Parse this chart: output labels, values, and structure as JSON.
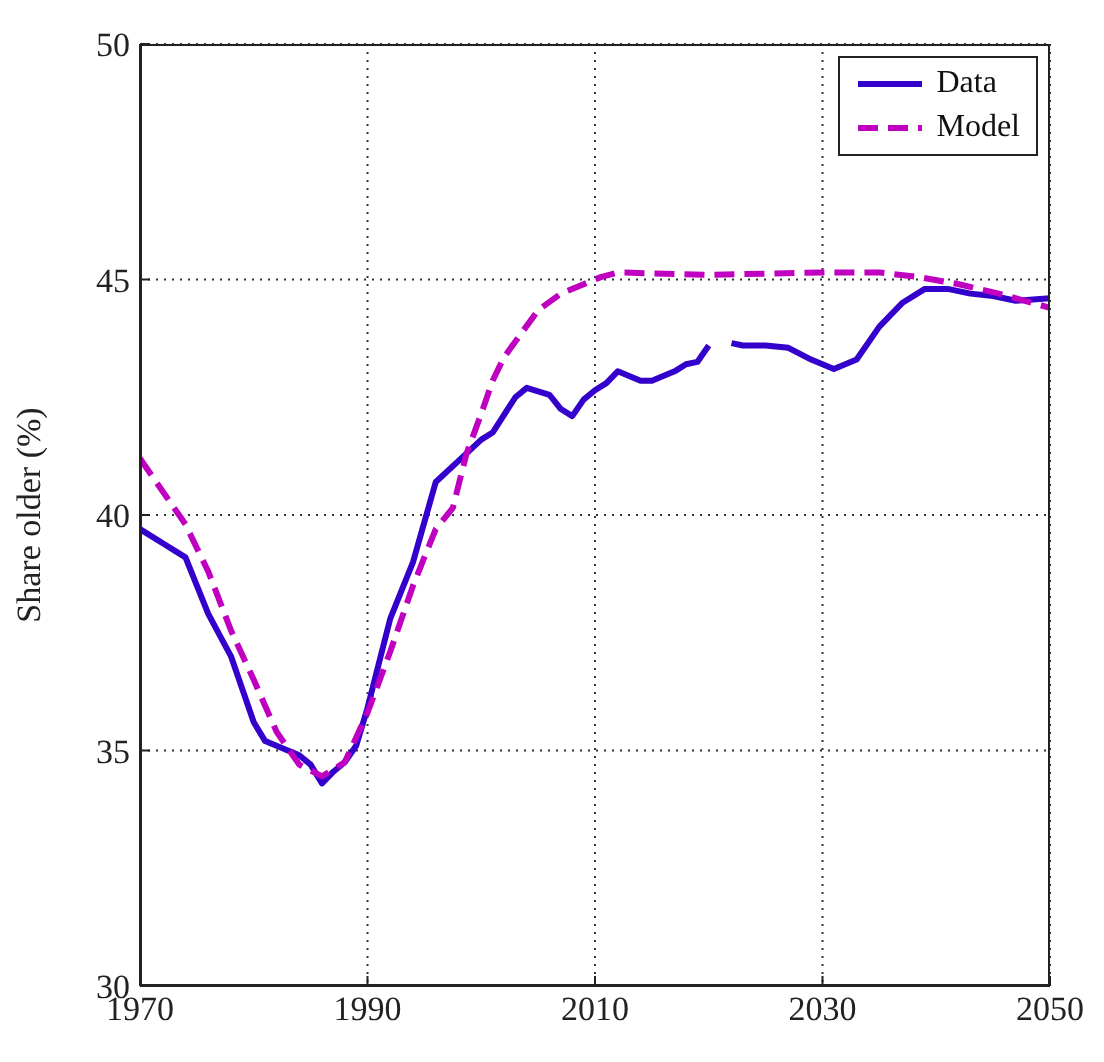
{
  "chart_data": {
    "type": "line",
    "ylabel": "Share older (%)",
    "xlim": [
      1970,
      2050
    ],
    "xticks": [
      1970,
      1990,
      2010,
      2030,
      2050
    ],
    "ylim": [
      30,
      50
    ],
    "yticks": [
      30,
      35,
      40,
      45,
      50
    ],
    "grid": true,
    "legend": "top right",
    "marker": "none",
    "series": [
      {
        "name": "Data",
        "color": "#3300cc",
        "line_style": "solid",
        "x": [
          1970,
          1972,
          1974,
          1976,
          1978,
          1979,
          1980,
          1981,
          1982,
          1984,
          1985,
          1986,
          1987,
          1988,
          1989,
          1990,
          1992,
          1994,
          1996,
          1998,
          2000,
          2001,
          2003,
          2004,
          2006,
          2007,
          2008,
          2009,
          2010,
          2011,
          2012,
          2013,
          2014,
          2015,
          2016,
          2017,
          2018,
          2019,
          2020,
          2021,
          2022,
          2023,
          2025,
          2027,
          2029,
          2031,
          2033,
          2035,
          2037,
          2039,
          2041,
          2043,
          2045,
          2047,
          2050
        ],
        "values": [
          39.7,
          39.4,
          39.1,
          37.9,
          37.0,
          36.3,
          35.6,
          35.2,
          35.1,
          34.9,
          34.7,
          34.3,
          34.55,
          34.75,
          35.1,
          35.9,
          37.8,
          39.0,
          40.7,
          41.15,
          41.6,
          41.75,
          42.5,
          42.7,
          42.55,
          42.25,
          42.1,
          42.45,
          42.65,
          42.8,
          43.05,
          42.95,
          42.85,
          42.85,
          42.95,
          43.05,
          43.2,
          43.25,
          43.6,
          null,
          43.65,
          43.6,
          43.6,
          43.55,
          43.3,
          43.1,
          43.3,
          44.0,
          44.5,
          44.8,
          44.8,
          44.7,
          44.65,
          44.55,
          44.6
        ]
      },
      {
        "name": "Model",
        "color": "#c000c0",
        "line_style": "dashed",
        "x": [
          1970,
          1974,
          1976,
          1978,
          1980,
          1982,
          1984,
          1986,
          1988,
          1990,
          1992,
          1994,
          1996,
          1997.5,
          1998.7,
          2000,
          2001,
          2002,
          2003.5,
          2005,
          2007,
          2009,
          2010.5,
          2012,
          2020,
          2030,
          2035,
          2038.5,
          2042,
          2045.5,
          2050
        ],
        "values": [
          41.2,
          39.8,
          38.8,
          37.55,
          36.5,
          35.4,
          34.7,
          34.45,
          34.75,
          35.8,
          37.1,
          38.5,
          39.7,
          40.15,
          41.3,
          42.15,
          42.85,
          43.35,
          43.85,
          44.35,
          44.7,
          44.9,
          45.05,
          45.15,
          45.1,
          45.15,
          45.15,
          45.05,
          44.9,
          44.7,
          44.4
        ]
      }
    ]
  }
}
